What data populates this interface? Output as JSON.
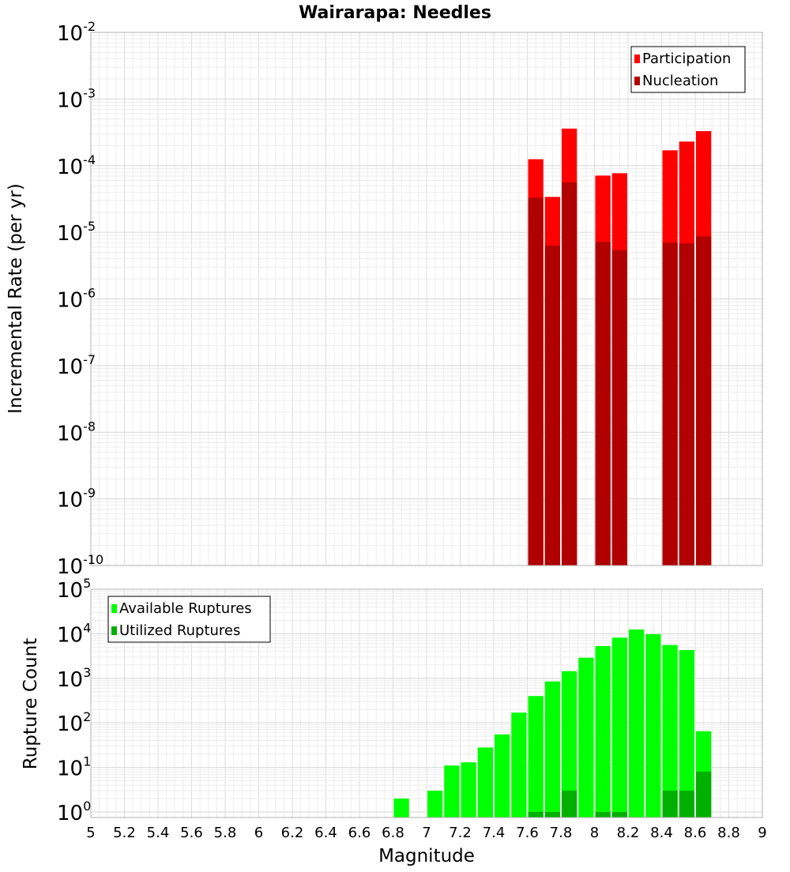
{
  "chart_data": [
    {
      "type": "bar",
      "title": "Wairarapa: Needles",
      "xlabel": "",
      "ylabel": "Incremental Rate (per yr)",
      "y_scale": "log",
      "ylim": [
        1e-10,
        0.01
      ],
      "xlim": [
        5,
        9
      ],
      "bar_width": 0.1,
      "grid": true,
      "legend_position": "top-right",
      "series": [
        {
          "name": "Participation",
          "color": "#ff0000",
          "x": [
            7.65,
            7.75,
            7.85,
            8.05,
            8.15,
            8.45,
            8.55,
            8.65
          ],
          "values": [
            0.000125,
            3.4e-05,
            0.00036,
            7.1e-05,
            7.7e-05,
            0.00017,
            0.00023,
            0.00033
          ]
        },
        {
          "name": "Nucleation",
          "color": "#b00000",
          "x": [
            7.65,
            7.75,
            7.85,
            8.05,
            8.15,
            8.45,
            8.55,
            8.65
          ],
          "values": [
            3.3e-05,
            6.3e-06,
            5.6e-05,
            7.2e-06,
            5.4e-06,
            7e-06,
            6.8e-06,
            8.7e-06
          ]
        }
      ]
    },
    {
      "type": "bar",
      "title": "",
      "xlabel": "Magnitude",
      "ylabel": "Rupture Count",
      "y_scale": "log",
      "ylim": [
        0.75,
        100000
      ],
      "xlim": [
        5,
        9
      ],
      "bar_width": 0.1,
      "grid": true,
      "legend_position": "top-left",
      "x_ticks": [
        "5",
        "5.2",
        "5.4",
        "5.6",
        "5.8",
        "6",
        "6.2",
        "6.4",
        "6.6",
        "6.8",
        "7",
        "7.2",
        "7.4",
        "7.6",
        "7.8",
        "8",
        "8.2",
        "8.4",
        "8.6",
        "8.8",
        "9"
      ],
      "series": [
        {
          "name": "Available Ruptures",
          "color": "#00ff00",
          "x": [
            6.85,
            7.05,
            7.15,
            7.25,
            7.35,
            7.45,
            7.55,
            7.65,
            7.75,
            7.85,
            7.95,
            8.05,
            8.15,
            8.25,
            8.35,
            8.45,
            8.55,
            8.65
          ],
          "values": [
            2,
            3,
            11,
            13,
            28,
            55,
            170,
            400,
            850,
            1450,
            2900,
            5300,
            8200,
            12500,
            9800,
            5600,
            4300,
            65
          ]
        },
        {
          "name": "Utilized Ruptures",
          "color": "#00b000",
          "x": [
            7.65,
            7.75,
            7.85,
            8.05,
            8.15,
            8.45,
            8.55,
            8.65
          ],
          "values": [
            1,
            1,
            3,
            1,
            1,
            3,
            3,
            8
          ]
        }
      ]
    }
  ]
}
